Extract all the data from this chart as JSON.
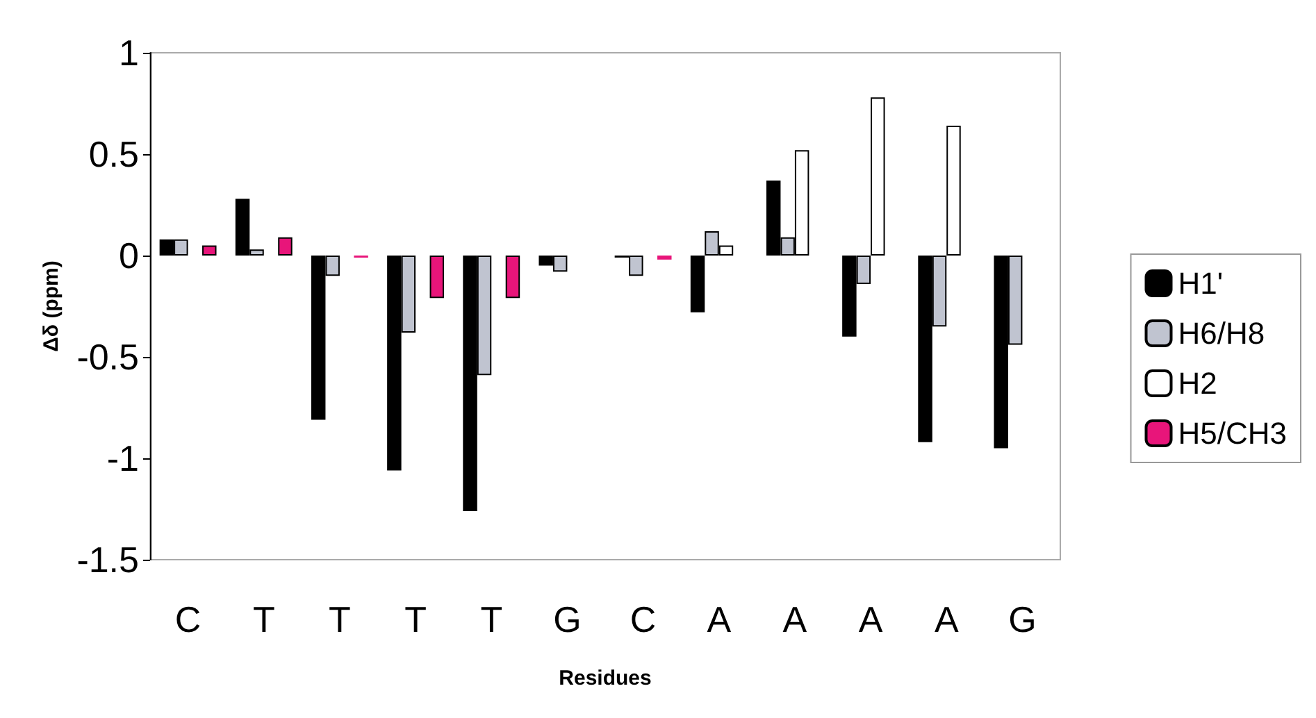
{
  "chart_data": {
    "type": "bar",
    "xlabel": "Residues",
    "ylabel": "Δδ (ppm)",
    "categories": [
      "C",
      "T",
      "T",
      "T",
      "T",
      "G",
      "C",
      "A",
      "A",
      "A",
      "A",
      "G"
    ],
    "series": [
      {
        "name": "H1'",
        "color": "#000000",
        "values": [
          0.08,
          0.28,
          -0.81,
          -1.06,
          -1.26,
          -0.05,
          -0.01,
          -0.28,
          0.37,
          -0.4,
          -0.92,
          -0.95
        ]
      },
      {
        "name": "H6/H8",
        "color": "#c0c4d0",
        "values": [
          0.08,
          0.03,
          -0.1,
          -0.38,
          -0.59,
          -0.08,
          -0.1,
          0.12,
          0.09,
          -0.14,
          -0.35,
          -0.44
        ]
      },
      {
        "name": "H2",
        "color": "#ffffff",
        "values": [
          null,
          null,
          null,
          null,
          null,
          null,
          null,
          0.05,
          0.52,
          0.78,
          0.64,
          null
        ]
      },
      {
        "name": "H5/CH3",
        "color": "#e8157a",
        "values": [
          0.05,
          0.09,
          -0.01,
          -0.21,
          -0.21,
          null,
          -0.02,
          null,
          null,
          null,
          null,
          null
        ]
      }
    ],
    "ylim": [
      -1.5,
      1
    ],
    "yticks": [
      -1.5,
      -1,
      -0.5,
      0,
      0.5,
      1
    ],
    "grid": false,
    "legend": "right"
  }
}
